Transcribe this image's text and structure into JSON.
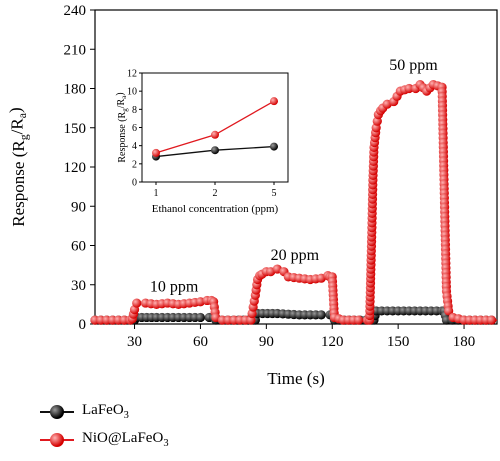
{
  "chart_data": [
    {
      "type": "line",
      "ylabel": "Response (Rg/Ra)",
      "xlabel": "Time (s)",
      "xlim": [
        12,
        195
      ],
      "ylim": [
        0,
        240
      ],
      "xticks": [
        30,
        60,
        90,
        120,
        150,
        180
      ],
      "yticks": [
        0,
        30,
        60,
        90,
        120,
        150,
        180,
        210,
        240
      ],
      "colors": {
        "lafeo3": "#111111",
        "nio": "#e0191f"
      },
      "annotations": [
        {
          "text": "10 ppm",
          "x": 48,
          "y": 25
        },
        {
          "text": "20 ppm",
          "x": 103,
          "y": 49
        },
        {
          "text": "50 ppm",
          "x": 157,
          "y": 194
        }
      ],
      "series": [
        {
          "name": "LaFeO3",
          "x": [
            12,
            20,
            28,
            30,
            31,
            40,
            50,
            60,
            64,
            66,
            67,
            75,
            84,
            85,
            86,
            95,
            105,
            115,
            119,
            120,
            121,
            130,
            138,
            139,
            140,
            150,
            160,
            165,
            170,
            171,
            172,
            180,
            190,
            195
          ],
          "y": [
            3,
            3,
            3,
            3,
            5,
            5,
            5,
            5,
            5,
            5,
            3,
            3,
            3,
            3,
            8,
            8,
            7,
            7,
            7,
            7,
            3,
            3,
            3,
            3,
            10,
            10,
            10,
            10,
            10,
            10,
            3,
            3,
            3,
            3
          ]
        },
        {
          "name": "NiO@LaFeO3",
          "x": [
            12,
            20,
            28,
            29,
            30,
            31,
            35,
            40,
            45,
            50,
            55,
            60,
            63,
            65,
            66,
            67,
            70,
            78,
            83,
            84,
            85,
            86,
            87,
            88,
            90,
            92,
            95,
            98,
            100,
            105,
            110,
            115,
            118,
            119,
            120,
            121,
            125,
            132,
            136,
            137,
            138,
            138.5,
            139,
            140,
            141,
            142,
            143,
            145,
            148,
            151,
            155,
            158,
            160,
            163,
            166,
            168,
            170,
            171,
            172,
            173,
            175,
            180,
            190,
            195
          ],
          "y": [
            3,
            3,
            3,
            4,
            11,
            16,
            16,
            15,
            16,
            15,
            16,
            17,
            18,
            18,
            17,
            5,
            3,
            3,
            3,
            13,
            22,
            34,
            37,
            38,
            40,
            40,
            42,
            40,
            36,
            35,
            34,
            35,
            37,
            36,
            36,
            5,
            3,
            3,
            3,
            3,
            70,
            110,
            135,
            150,
            160,
            163,
            165,
            168,
            170,
            178,
            180,
            180,
            183,
            178,
            183,
            182,
            181,
            100,
            25,
            10,
            5,
            3,
            3,
            3
          ]
        }
      ]
    },
    {
      "type": "line",
      "ylabel": "Response (Rg/Ra)",
      "xlabel": "Ethanol concentration (ppm)",
      "categories": [
        "1",
        "2",
        "5"
      ],
      "ylim": [
        0,
        12
      ],
      "yticks": [
        0,
        2,
        4,
        6,
        8,
        10,
        12
      ],
      "series": [
        {
          "name": "LaFeO3",
          "values": [
            2.8,
            3.5,
            3.9
          ]
        },
        {
          "name": "NiO@LaFeO3",
          "values": [
            3.2,
            5.2,
            8.9
          ]
        }
      ]
    }
  ],
  "legend": {
    "items": [
      {
        "label": "LaFeO3"
      },
      {
        "label": "NiO@LaFeO3"
      }
    ]
  }
}
